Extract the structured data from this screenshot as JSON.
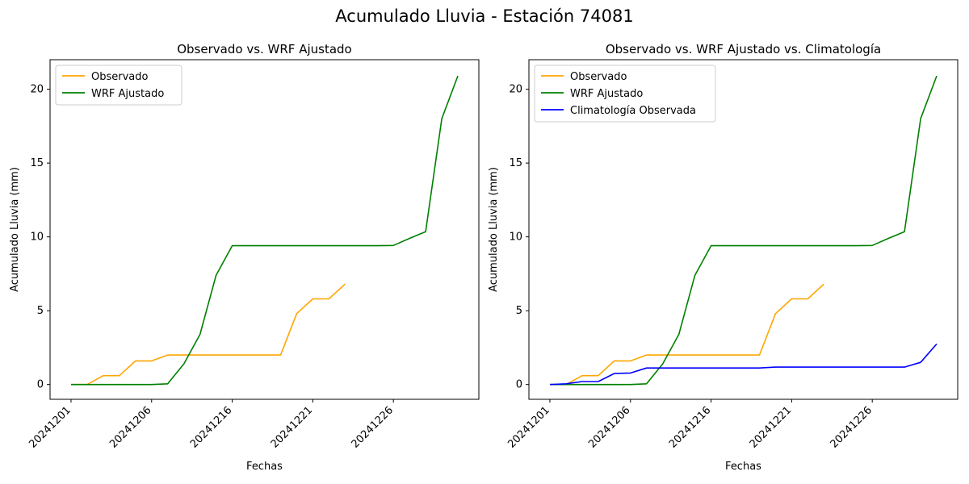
{
  "figure": {
    "title": "Acumulado Lluvia - Estación 74081"
  },
  "chart_data": [
    {
      "type": "line",
      "title": "Observado vs. WRF Ajustado",
      "xlabel": "Fechas",
      "ylabel": "Acumulado Lluvia (mm)",
      "x_tick_labels": [
        "20241201",
        "20241206",
        "20241216",
        "20241221",
        "20241226"
      ],
      "y_ticks": [
        0,
        5,
        10,
        15,
        20
      ],
      "ylim": [
        -1,
        22
      ],
      "legend": "top-left",
      "series": [
        {
          "name": "Observado",
          "color": "#ffa500",
          "points": [
            [
              0,
              0
            ],
            [
              1,
              0
            ],
            [
              2,
              0.6
            ],
            [
              3,
              0.6
            ],
            [
              4,
              1.6
            ],
            [
              5,
              1.6
            ],
            [
              6,
              2.0
            ],
            [
              7,
              2.0
            ],
            [
              8,
              2.0
            ],
            [
              9,
              2.0
            ],
            [
              10,
              2.0
            ],
            [
              11,
              2.0
            ],
            [
              12,
              2.0
            ],
            [
              13,
              2.0
            ],
            [
              14,
              4.8
            ],
            [
              15,
              5.8
            ],
            [
              16,
              5.8
            ],
            [
              17,
              6.8
            ]
          ]
        },
        {
          "name": "WRF Ajustado",
          "color": "#008000",
          "points": [
            [
              0,
              0
            ],
            [
              1,
              0
            ],
            [
              2,
              0
            ],
            [
              3,
              0
            ],
            [
              4,
              0
            ],
            [
              5,
              0
            ],
            [
              6,
              0.05
            ],
            [
              7,
              1.4
            ],
            [
              8,
              3.4
            ],
            [
              9,
              7.4
            ],
            [
              10,
              9.4
            ],
            [
              11,
              9.4
            ],
            [
              12,
              9.4
            ],
            [
              13,
              9.4
            ],
            [
              14,
              9.4
            ],
            [
              15,
              9.4
            ],
            [
              16,
              9.4
            ],
            [
              17,
              9.4
            ],
            [
              18,
              9.4
            ],
            [
              19,
              9.4
            ],
            [
              20,
              9.42
            ],
            [
              21,
              9.9
            ],
            [
              22,
              10.35
            ],
            [
              23,
              18.0
            ],
            [
              24,
              20.9
            ]
          ]
        }
      ]
    },
    {
      "type": "line",
      "title": "Observado vs. WRF Ajustado vs. Climatología",
      "xlabel": "Fechas",
      "ylabel": "Acumulado Lluvia (mm)",
      "x_tick_labels": [
        "20241201",
        "20241206",
        "20241216",
        "20241221",
        "20241226"
      ],
      "y_ticks": [
        0,
        5,
        10,
        15,
        20
      ],
      "ylim": [
        -1,
        22
      ],
      "legend": "top-left",
      "series": [
        {
          "name": "Observado",
          "color": "#ffa500",
          "points": [
            [
              0,
              0
            ],
            [
              1,
              0
            ],
            [
              2,
              0.6
            ],
            [
              3,
              0.6
            ],
            [
              4,
              1.6
            ],
            [
              5,
              1.6
            ],
            [
              6,
              2.0
            ],
            [
              7,
              2.0
            ],
            [
              8,
              2.0
            ],
            [
              9,
              2.0
            ],
            [
              10,
              2.0
            ],
            [
              11,
              2.0
            ],
            [
              12,
              2.0
            ],
            [
              13,
              2.0
            ],
            [
              14,
              4.8
            ],
            [
              15,
              5.8
            ],
            [
              16,
              5.8
            ],
            [
              17,
              6.8
            ]
          ]
        },
        {
          "name": "WRF Ajustado",
          "color": "#008000",
          "points": [
            [
              0,
              0
            ],
            [
              1,
              0
            ],
            [
              2,
              0
            ],
            [
              3,
              0
            ],
            [
              4,
              0
            ],
            [
              5,
              0
            ],
            [
              6,
              0.05
            ],
            [
              7,
              1.4
            ],
            [
              8,
              3.4
            ],
            [
              9,
              7.4
            ],
            [
              10,
              9.4
            ],
            [
              11,
              9.4
            ],
            [
              12,
              9.4
            ],
            [
              13,
              9.4
            ],
            [
              14,
              9.4
            ],
            [
              15,
              9.4
            ],
            [
              16,
              9.4
            ],
            [
              17,
              9.4
            ],
            [
              18,
              9.4
            ],
            [
              19,
              9.4
            ],
            [
              20,
              9.42
            ],
            [
              21,
              9.9
            ],
            [
              22,
              10.35
            ],
            [
              23,
              18.0
            ],
            [
              24,
              20.9
            ]
          ]
        },
        {
          "name": "Climatología Observada",
          "color": "#0000ff",
          "points": [
            [
              0,
              0
            ],
            [
              1,
              0.05
            ],
            [
              2,
              0.2
            ],
            [
              3,
              0.2
            ],
            [
              4,
              0.75
            ],
            [
              5,
              0.78
            ],
            [
              6,
              1.12
            ],
            [
              7,
              1.12
            ],
            [
              8,
              1.12
            ],
            [
              9,
              1.12
            ],
            [
              10,
              1.12
            ],
            [
              11,
              1.12
            ],
            [
              12,
              1.12
            ],
            [
              13,
              1.12
            ],
            [
              14,
              1.18
            ],
            [
              15,
              1.18
            ],
            [
              16,
              1.18
            ],
            [
              17,
              1.18
            ],
            [
              18,
              1.18
            ],
            [
              19,
              1.18
            ],
            [
              20,
              1.18
            ],
            [
              21,
              1.18
            ],
            [
              22,
              1.18
            ],
            [
              23,
              1.5
            ],
            [
              24,
              2.75
            ]
          ]
        }
      ]
    }
  ]
}
